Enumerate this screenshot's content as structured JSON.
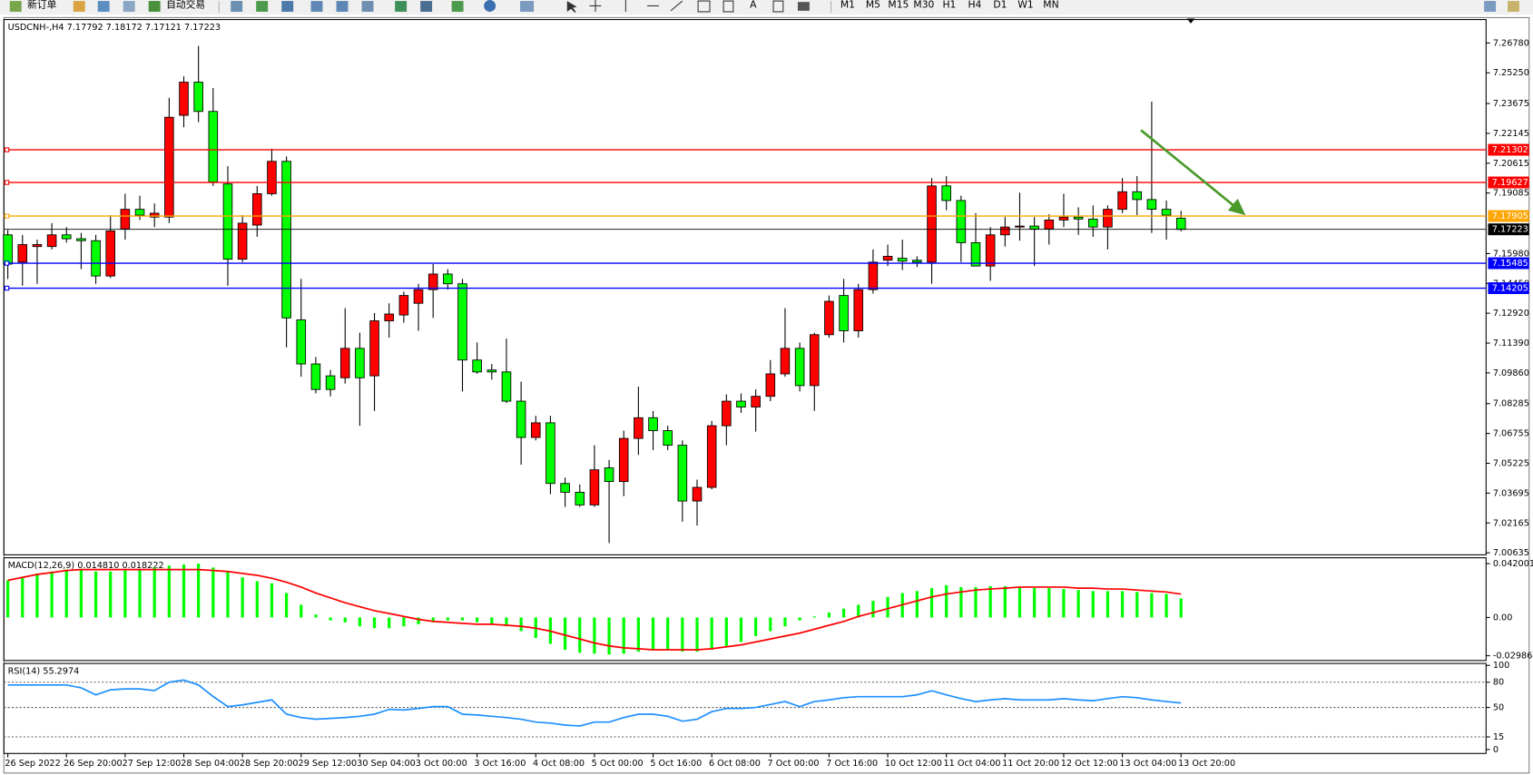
{
  "toolbar": {
    "order_button": "新订单",
    "auto_trade_button": "自动交易",
    "text_tool": "A",
    "timeframes": [
      "M1",
      "M5",
      "M15",
      "M30",
      "H1",
      "H4",
      "D1",
      "W1",
      "MN"
    ]
  },
  "chart_data": [
    {
      "type": "candlestick",
      "title": "USDCNH-,H4  7.17792 7.18172 7.17121 7.17223",
      "categories": [
        "26 Sep 2022",
        null,
        null,
        null,
        "26 Sep 20:00",
        null,
        null,
        null,
        "27 Sep 12:00",
        null,
        null,
        null,
        "28 Sep 04:00",
        null,
        null,
        null,
        "28 Sep 20:00",
        null,
        null,
        null,
        "29 Sep 12:00",
        null,
        null,
        null,
        "30 Sep 04:00",
        null,
        null,
        null,
        "3 Oct 00:00",
        null,
        null,
        null,
        "3 Oct 16:00",
        null,
        null,
        null,
        "4 Oct 08:00",
        null,
        null,
        null,
        "5 Oct 00:00",
        null,
        null,
        null,
        "5 Oct 16:00",
        null,
        null,
        null,
        "6 Oct 08:00",
        null,
        null,
        null,
        "7 Oct 00:00",
        null,
        null,
        null,
        "7 Oct 16:00",
        null,
        null,
        null,
        "10 Oct 12:00",
        null,
        null,
        null,
        "11 Oct 04:00",
        null,
        null,
        null,
        "11 Oct 20:00",
        null,
        null,
        null,
        "12 Oct 12:00",
        null,
        null,
        null,
        "13 Oct 04:00",
        null,
        null,
        null,
        "13 Oct 20:00"
      ],
      "open": [
        7.1694,
        7.1554,
        7.1634,
        7.1634,
        7.1694,
        7.1674,
        7.1664,
        7.1483,
        7.1724,
        7.1825,
        7.1785,
        7.1785,
        7.2307,
        7.2477,
        7.2327,
        7.1955,
        7.1569,
        7.1744,
        7.1905,
        7.2071,
        7.1258,
        7.1032,
        7.0971,
        7.0961,
        7.1112,
        7.0971,
        7.1253,
        7.1283,
        7.1343,
        7.1413,
        7.1493,
        7.1443,
        7.1052,
        7.1001,
        7.0991,
        7.0841,
        7.0655,
        7.073,
        7.0419,
        7.0374,
        7.0309,
        7.0499,
        7.0429,
        7.065,
        7.0756,
        7.069,
        7.0615,
        7.0329,
        7.0399,
        7.0715,
        7.0841,
        7.0811,
        7.0866,
        7.0981,
        7.1112,
        7.0921,
        7.1182,
        7.1383,
        7.1202,
        7.1413,
        7.1564,
        7.1574,
        7.1564,
        7.1554,
        7.1945,
        7.187,
        7.1654,
        7.1534,
        7.1694,
        7.1734,
        7.1739,
        7.1724,
        7.177,
        7.1785,
        7.1775,
        7.1734,
        7.1825,
        7.1915,
        7.1875,
        7.1825,
        7.17792
      ],
      "high": [
        7.1719,
        7.1694,
        7.1669,
        7.1754,
        7.1734,
        7.1704,
        7.1694,
        7.1795,
        7.1905,
        7.1895,
        7.1855,
        7.2397,
        7.2507,
        7.2663,
        7.2447,
        7.2046,
        7.1795,
        7.1945,
        7.2136,
        7.2096,
        7.1468,
        7.1067,
        7.1001,
        7.1318,
        7.1192,
        7.1293,
        7.1343,
        7.1403,
        7.1443,
        7.1544,
        7.1518,
        7.1468,
        7.1142,
        7.1032,
        7.1162,
        7.0941,
        7.0766,
        7.0766,
        7.0449,
        7.0414,
        7.0615,
        7.054,
        7.069,
        7.0916,
        7.0791,
        7.0715,
        7.064,
        7.0439,
        7.074,
        7.0876,
        7.0881,
        7.0901,
        7.1052,
        7.1318,
        7.1142,
        7.1192,
        7.1383,
        7.1468,
        7.1443,
        7.1619,
        7.1644,
        7.1669,
        7.1584,
        7.1985,
        7.1995,
        7.1895,
        7.1805,
        7.1734,
        7.1785,
        7.191,
        7.1785,
        7.18,
        7.1905,
        7.1835,
        7.1845,
        7.1845,
        7.1985,
        7.1995,
        7.2377,
        7.187,
        7.18172
      ],
      "low": [
        7.1468,
        7.1433,
        7.1443,
        7.1619,
        7.1654,
        7.1518,
        7.1443,
        7.1473,
        7.1669,
        7.177,
        7.1734,
        7.1754,
        7.2246,
        7.2272,
        7.1945,
        7.1433,
        7.1554,
        7.1684,
        7.1895,
        7.1117,
        7.0966,
        7.0881,
        7.0866,
        7.0931,
        7.0715,
        7.0791,
        7.1167,
        7.1243,
        7.1202,
        7.1268,
        7.1413,
        7.0891,
        7.0981,
        7.0951,
        7.0831,
        7.0515,
        7.064,
        7.0364,
        7.0299,
        7.0299,
        7.0299,
        7.0113,
        7.0354,
        7.0565,
        7.059,
        7.059,
        7.0223,
        7.0203,
        7.0389,
        7.0615,
        7.0781,
        7.0685,
        7.0841,
        7.0966,
        7.0891,
        7.0791,
        7.1167,
        7.1142,
        7.1167,
        7.1393,
        7.1534,
        7.1513,
        7.1529,
        7.1443,
        7.182,
        7.1554,
        7.1534,
        7.1458,
        7.1634,
        7.1664,
        7.1534,
        7.1644,
        7.1734,
        7.1694,
        7.1684,
        7.1619,
        7.1805,
        7.1795,
        7.1704,
        7.1669,
        7.17121
      ],
      "close": [
        7.1544,
        7.1644,
        7.1644,
        7.1694,
        7.1674,
        7.1664,
        7.1483,
        7.1714,
        7.1825,
        7.1795,
        7.1805,
        7.2297,
        7.2477,
        7.2327,
        7.1965,
        7.1569,
        7.1754,
        7.1905,
        7.2071,
        7.1268,
        7.1032,
        7.0901,
        7.0901,
        7.1112,
        7.0961,
        7.1253,
        7.1288,
        7.1383,
        7.1413,
        7.1493,
        7.1443,
        7.1052,
        7.0991,
        7.0991,
        7.0841,
        7.0655,
        7.073,
        7.0419,
        7.0374,
        7.0309,
        7.0489,
        7.0429,
        7.065,
        7.0756,
        7.069,
        7.0615,
        7.0329,
        7.0399,
        7.0715,
        7.0841,
        7.0811,
        7.0866,
        7.0981,
        7.1112,
        7.0921,
        7.1182,
        7.1353,
        7.1202,
        7.1413,
        7.1554,
        7.1584,
        7.1559,
        7.1554,
        7.1945,
        7.187,
        7.1654,
        7.1534,
        7.1694,
        7.1734,
        7.1739,
        7.1724,
        7.177,
        7.1785,
        7.1775,
        7.1734,
        7.1825,
        7.1915,
        7.1875,
        7.1825,
        7.1795,
        7.17223
      ],
      "up_color": "#ff0000",
      "down_color": "#00ff00",
      "current_price_color": "#000000",
      "levels": [
        {
          "value": 7.21302,
          "color": "#ff0000"
        },
        {
          "value": 7.19627,
          "color": "#ff0000"
        },
        {
          "value": 7.17905,
          "color": "#ffa500"
        },
        {
          "value": 7.15485,
          "color": "#0000ff"
        },
        {
          "value": 7.14205,
          "color": "#0000ff"
        }
      ],
      "ylim": [
        7.0053,
        7.2798
      ],
      "yticks": [
        {
          "value": 7.2678,
          "label": "7.26780"
        },
        {
          "value": 7.2525,
          "label": "7.25250"
        },
        7.23675,
        7.22145,
        7.20615,
        7.19085,
        {
          "value": 7.1598,
          "label": "7.15980"
        },
        {
          "value": 7.1445,
          "label": "7.14450"
        },
        {
          "value": 7.1292,
          "label": "7.12920"
        },
        {
          "value": 7.1139,
          "label": "7.11390"
        },
        {
          "value": 7.0986,
          "label": "7.09860"
        },
        7.08285,
        7.06755,
        7.05225,
        7.03695,
        7.02165,
        7.00635
      ]
    },
    {
      "type": "macd",
      "title": "MACD(12,26,9) 0.014810 0.018222",
      "series": [
        {
          "type": "bar",
          "color": "#00ff00",
          "values": [
            0.029,
            0.0313,
            0.0344,
            0.0359,
            0.0374,
            0.0374,
            0.0359,
            0.0359,
            0.0367,
            0.0374,
            0.039,
            0.0405,
            0.0413,
            0.042,
            0.039,
            0.0359,
            0.0313,
            0.0283,
            0.0267,
            0.0191,
            0.0099,
            0.0023,
            -0.0023,
            -0.0038,
            -0.0069,
            -0.0084,
            -0.0084,
            -0.0069,
            -0.0053,
            -0.0038,
            -0.0023,
            -0.0023,
            -0.0038,
            -0.0053,
            -0.0069,
            -0.0107,
            -0.016,
            -0.0206,
            -0.0252,
            -0.0275,
            -0.0283,
            -0.029,
            -0.0283,
            -0.0267,
            -0.0252,
            -0.0252,
            -0.0267,
            -0.0267,
            -0.0252,
            -0.0222,
            -0.0191,
            -0.0145,
            -0.0107,
            -0.0069,
            -0.0023,
            0.0008,
            0.0038,
            0.0069,
            0.0099,
            0.013,
            0.016,
            0.0191,
            0.0206,
            0.0229,
            0.0252,
            0.0237,
            0.0237,
            0.0244,
            0.0244,
            0.0237,
            0.0229,
            0.0229,
            0.0222,
            0.0214,
            0.0206,
            0.0206,
            0.0206,
            0.0199,
            0.0191,
            0.0183,
            0.01481
          ]
        },
        {
          "type": "line",
          "color": "#ff0000",
          "values": [
            0.029,
            0.0313,
            0.0336,
            0.0351,
            0.0367,
            0.0374,
            0.0374,
            0.0374,
            0.0374,
            0.0374,
            0.0374,
            0.0374,
            0.0374,
            0.0374,
            0.0367,
            0.0359,
            0.0344,
            0.0329,
            0.0306,
            0.0275,
            0.0237,
            0.0191,
            0.0153,
            0.0115,
            0.0084,
            0.0053,
            0.0031,
            0.0008,
            -0.0015,
            -0.0031,
            -0.0038,
            -0.0046,
            -0.0053,
            -0.0053,
            -0.0061,
            -0.0069,
            -0.0084,
            -0.0107,
            -0.0138,
            -0.0168,
            -0.0199,
            -0.0222,
            -0.0237,
            -0.0244,
            -0.0252,
            -0.0252,
            -0.0252,
            -0.0252,
            -0.0244,
            -0.0229,
            -0.0214,
            -0.0191,
            -0.0168,
            -0.0145,
            -0.0122,
            -0.0092,
            -0.0061,
            -0.0031,
            0.0008,
            0.0038,
            0.0069,
            0.0099,
            0.013,
            0.016,
            0.0183,
            0.0199,
            0.0214,
            0.0222,
            0.0229,
            0.0237,
            0.0237,
            0.0237,
            0.0237,
            0.0229,
            0.0229,
            0.0222,
            0.0222,
            0.0214,
            0.0206,
            0.0199,
            0.018222
          ]
        }
      ],
      "ylim": [
        -0.0336,
        0.0466
      ],
      "yticks": [
        0.042001,
        {
          "value": 0,
          "label": "0.00"
        },
        -0.029864
      ]
    },
    {
      "type": "line",
      "title": "RSI(14) 55.2974",
      "color": "#1e90ff",
      "values": [
        76.7,
        76.7,
        76.7,
        76.7,
        76.7,
        73.3,
        65,
        71,
        72,
        72,
        70,
        80,
        82.5,
        76.7,
        63,
        51,
        53,
        56,
        59,
        42,
        38,
        36,
        37,
        38,
        39.5,
        42,
        47.7,
        47,
        48.8,
        51,
        51,
        42,
        41,
        39.5,
        38,
        36,
        32.6,
        31.4,
        29,
        28,
        32.6,
        32.6,
        38,
        42,
        42,
        39.5,
        33.7,
        36,
        45,
        48.8,
        48.8,
        50,
        53.5,
        57,
        51,
        57,
        59,
        61.6,
        62.8,
        62.8,
        62.8,
        62.8,
        65,
        69.8,
        65,
        60.5,
        57,
        59,
        60.5,
        59,
        59,
        59,
        60.5,
        59,
        58,
        60.5,
        62.8,
        61.6,
        59,
        57,
        55.2974
      ],
      "levels": [
        80,
        50,
        15
      ],
      "ylim": [
        -4.7,
        102.3
      ],
      "yticks": [
        100,
        80,
        50,
        15,
        0
      ]
    }
  ]
}
